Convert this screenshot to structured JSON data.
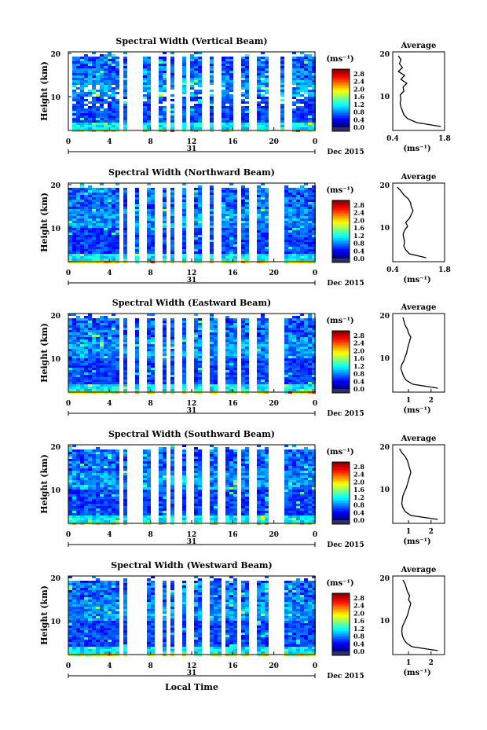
{
  "figure": {
    "xlabel": "Local Time",
    "date_label": "Dec 2015",
    "day_label": "31",
    "avg_title": "Average",
    "cbar_unit": "(ms⁻¹)",
    "ylabel": "Height (km)",
    "avg_xlabel": "(ms⁻¹)"
  },
  "chart_data": [
    {
      "type": "heatmap",
      "title": "Spectral Width (Vertical Beam)",
      "x_ticks": [
        "0",
        "4",
        "8",
        "12",
        "16",
        "20",
        "0"
      ],
      "y_ticks": [
        "20",
        "10"
      ],
      "ylim": [
        0,
        20
      ],
      "xlim": [
        0,
        24
      ],
      "colorbar": {
        "ticks": [
          "2.8",
          "2.4",
          "2.0",
          "1.6",
          "1.2",
          "0.8",
          "0.4",
          "0.0"
        ],
        "range": [
          0,
          3.0
        ]
      },
      "average_profile": {
        "xticks": [
          "0.4",
          "1.8"
        ],
        "xlim": [
          0.4,
          1.8
        ],
        "height_km": [
          1,
          2,
          3,
          4,
          5,
          6,
          7,
          8,
          9,
          10,
          11,
          12,
          13,
          14,
          15,
          16,
          17,
          18,
          19
        ],
        "width_ms": [
          1.7,
          1.05,
          0.8,
          0.7,
          0.66,
          0.62,
          0.6,
          0.62,
          0.6,
          0.7,
          0.68,
          0.78,
          0.62,
          0.72,
          0.55,
          0.66,
          0.58,
          0.62,
          0.55
        ]
      }
    },
    {
      "type": "heatmap",
      "title": "Spectral Width (Northward Beam)",
      "x_ticks": [
        "0",
        "4",
        "8",
        "12",
        "16",
        "20",
        "0"
      ],
      "y_ticks": [
        "20",
        "10"
      ],
      "ylim": [
        0,
        20
      ],
      "xlim": [
        0,
        24
      ],
      "colorbar": {
        "ticks": [
          "2.8",
          "2.4",
          "2.0",
          "1.6",
          "1.2",
          "0.8",
          "0.4",
          "0.0"
        ],
        "range": [
          0,
          3.0
        ]
      },
      "average_profile": {
        "xticks": [
          "0.4",
          "1.8"
        ],
        "xlim": [
          0.4,
          1.8
        ],
        "height_km": [
          1,
          2,
          3,
          4,
          5,
          6,
          7,
          8,
          9,
          10,
          11,
          12,
          13,
          14,
          15,
          16,
          17,
          18,
          19
        ],
        "width_ms": [
          1.3,
          0.85,
          0.75,
          0.7,
          0.72,
          0.7,
          0.68,
          0.72,
          0.8,
          0.75,
          0.85,
          0.9,
          0.95,
          0.9,
          0.88,
          0.82,
          0.7,
          0.62,
          0.52
        ]
      }
    },
    {
      "type": "heatmap",
      "title": "Spectral Width (Eastward Beam)",
      "x_ticks": [
        "0",
        "4",
        "8",
        "12",
        "16",
        "20",
        "0"
      ],
      "y_ticks": [
        "20",
        "10"
      ],
      "ylim": [
        0,
        20
      ],
      "xlim": [
        0,
        24
      ],
      "colorbar": {
        "ticks": [
          "2.8",
          "2.4",
          "2.0",
          "1.6",
          "1.2",
          "0.8",
          "0.4",
          "0.0"
        ],
        "range": [
          0,
          3.0
        ]
      },
      "average_profile": {
        "xticks": [
          "1",
          "2"
        ],
        "xlim": [
          0.3,
          2.6
        ],
        "height_km": [
          1,
          2,
          3,
          4,
          5,
          6,
          7,
          8,
          9,
          10,
          11,
          12,
          13,
          14,
          15,
          16,
          17,
          18,
          19
        ],
        "width_ms": [
          2.3,
          1.2,
          0.9,
          0.78,
          0.72,
          0.66,
          0.7,
          0.8,
          0.85,
          0.92,
          0.95,
          1.0,
          1.05,
          1.1,
          1.0,
          0.95,
          0.85,
          0.8,
          0.75
        ]
      }
    },
    {
      "type": "heatmap",
      "title": "Spectral Width (Southward Beam)",
      "x_ticks": [
        "0",
        "4",
        "8",
        "12",
        "16",
        "20",
        "0"
      ],
      "y_ticks": [
        "20",
        "10"
      ],
      "ylim": [
        0,
        20
      ],
      "xlim": [
        0,
        24
      ],
      "colorbar": {
        "ticks": [
          "2.8",
          "2.4",
          "2.0",
          "1.6",
          "1.2",
          "0.8",
          "0.4",
          "0.0"
        ],
        "range": [
          0,
          3.0
        ]
      },
      "average_profile": {
        "xticks": [
          "1",
          "2"
        ],
        "xlim": [
          0.3,
          2.6
        ],
        "height_km": [
          1,
          2,
          3,
          4,
          5,
          6,
          7,
          8,
          9,
          10,
          11,
          12,
          13,
          14,
          15,
          16,
          17,
          18,
          19
        ],
        "width_ms": [
          2.3,
          1.1,
          0.85,
          0.75,
          0.7,
          0.72,
          0.75,
          0.82,
          0.9,
          0.95,
          1.0,
          1.05,
          1.1,
          1.05,
          1.0,
          0.95,
          0.85,
          0.7,
          0.6
        ]
      }
    },
    {
      "type": "heatmap",
      "title": "Spectral Width (Westward Beam)",
      "x_ticks": [
        "0",
        "4",
        "8",
        "12",
        "16",
        "20",
        "0"
      ],
      "y_ticks": [
        "20",
        "10"
      ],
      "ylim": [
        0,
        20
      ],
      "xlim": [
        0,
        24
      ],
      "colorbar": {
        "ticks": [
          "2.8",
          "2.4",
          "2.0",
          "1.6",
          "1.2",
          "0.8",
          "0.4",
          "0.0"
        ],
        "range": [
          0,
          3.0
        ]
      },
      "average_profile": {
        "xticks": [
          "1",
          "2"
        ],
        "xlim": [
          0.3,
          2.6
        ],
        "height_km": [
          1,
          2,
          3,
          4,
          5,
          6,
          7,
          8,
          9,
          10,
          11,
          12,
          13,
          14,
          15,
          16,
          17,
          18,
          19
        ],
        "width_ms": [
          2.3,
          1.15,
          0.9,
          0.78,
          0.72,
          0.7,
          0.72,
          0.8,
          0.88,
          0.95,
          1.0,
          1.05,
          1.1,
          1.0,
          1.05,
          0.95,
          0.9,
          0.85,
          0.75
        ]
      }
    }
  ]
}
